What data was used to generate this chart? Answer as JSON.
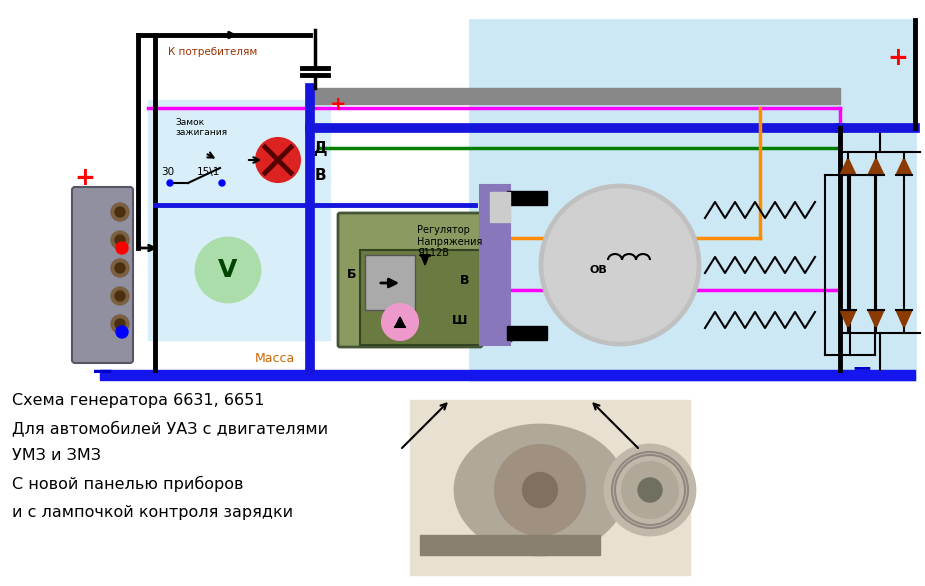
{
  "bg_color": "#ffffff",
  "diagram_bg": "#cce8f4",
  "diagram_left_bg": "#d8eef8",
  "title_lines": [
    "Схема генератора 6631, 6651",
    "Для автомобилей УАЗ с двигателями",
    "УМЗ и ЗМЗ",
    "С новой панелью приборов",
    "и с лампочкой контроля зарядки"
  ],
  "label_k_potrebitelyam": "К потребителям",
  "label_massa": "Масса",
  "label_zamok": "Замок\nзажигания",
  "label_d": "Д",
  "label_v": "В",
  "label_b": "Б",
  "label_v2": "В",
  "label_sh": "Ш",
  "label_ov": "ОВ",
  "label_regulator": "Регулятор\nНапряжения\nЯ112В",
  "label_30": "30",
  "label_15": "15\\1",
  "plus_color": "#ff0000",
  "minus_color": "#0000cd",
  "wire_blue": "#1515dd",
  "wire_black": "#000000",
  "wire_pink": "#ff00ff",
  "wire_green": "#008000",
  "wire_orange": "#ff8c00",
  "wire_gray": "#888888",
  "wire_darkred": "#8b0000"
}
